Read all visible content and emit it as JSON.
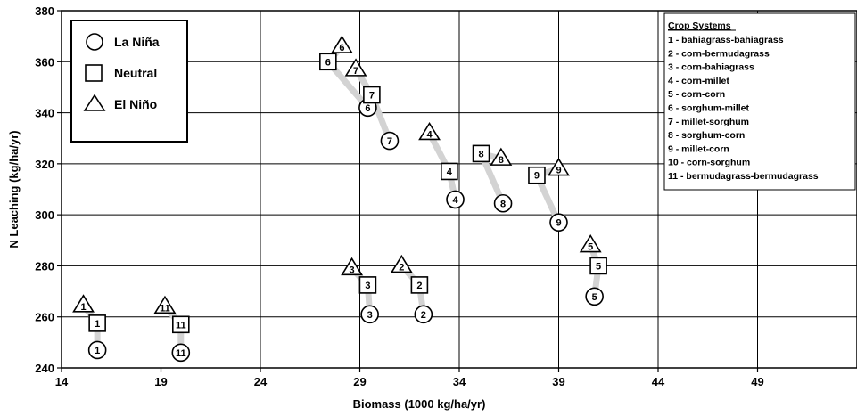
{
  "chart_data": {
    "type": "scatter",
    "xlabel": "Biomass (1000 kg/ha/yr)",
    "ylabel": "N Leaching (kg/ha/yr)",
    "xlim": [
      14,
      54
    ],
    "ylim": [
      240,
      380
    ],
    "xticks": [
      14,
      19,
      24,
      29,
      34,
      39,
      44,
      49
    ],
    "yticks": [
      240,
      260,
      280,
      300,
      320,
      340,
      360,
      380
    ],
    "grid": true,
    "legend": {
      "placement": "top-left",
      "entries": [
        {
          "marker": "circle",
          "label": "La Niña"
        },
        {
          "marker": "square",
          "label": "Neutral"
        },
        {
          "marker": "triangle",
          "label": "El Niño"
        }
      ]
    },
    "crop_systems_box": {
      "title": "Crop Systems",
      "items": [
        "1 - bahiagrass-bahiagrass",
        "2 - corn-bermudagrass",
        "3 - corn-bahiagrass",
        "4 - corn-millet",
        "5 - corn-corn",
        "6 - sorghum-millet",
        "7 - millet-sorghum",
        "8 - sorghum-corn",
        "9 - millet-corn",
        "10 - corn-sorghum",
        "11 - bermudagrass-bermudagrass"
      ]
    },
    "connector_color": "#d3d3d3",
    "systems": [
      {
        "id": "1",
        "la_nina": [
          15.8,
          247
        ],
        "neutral": [
          15.8,
          257.5
        ],
        "el_nino": [
          15.1,
          264.5
        ]
      },
      {
        "id": "2",
        "la_nina": [
          32.2,
          261
        ],
        "neutral": [
          32.0,
          272.5
        ],
        "el_nino": [
          31.1,
          280
        ]
      },
      {
        "id": "3",
        "la_nina": [
          29.5,
          261
        ],
        "neutral": [
          29.4,
          272.5
        ],
        "el_nino": [
          28.6,
          279
        ]
      },
      {
        "id": "4",
        "la_nina": [
          33.8,
          306
        ],
        "neutral": [
          33.5,
          317
        ],
        "el_nino": [
          32.5,
          332
        ]
      },
      {
        "id": "5",
        "la_nina": [
          40.8,
          268
        ],
        "neutral": [
          41.0,
          280
        ],
        "el_nino": [
          40.6,
          288
        ]
      },
      {
        "id": "6",
        "la_nina": [
          29.4,
          342
        ],
        "neutral": [
          27.4,
          360
        ],
        "el_nino": [
          28.1,
          366
        ]
      },
      {
        "id": "7",
        "la_nina": [
          30.5,
          329
        ],
        "neutral": [
          29.6,
          347
        ],
        "el_nino": [
          28.8,
          357
        ]
      },
      {
        "id": "8",
        "la_nina": [
          36.2,
          304.5
        ],
        "neutral": [
          35.1,
          324
        ],
        "el_nino": [
          36.1,
          322
        ]
      },
      {
        "id": "9",
        "la_nina": [
          39.0,
          297
        ],
        "neutral": [
          37.9,
          315.5
        ],
        "el_nino": [
          39.0,
          318
        ]
      },
      {
        "id": "11",
        "la_nina": [
          20.0,
          246
        ],
        "neutral": [
          20.0,
          257
        ],
        "el_nino": [
          19.2,
          264
        ]
      }
    ]
  }
}
